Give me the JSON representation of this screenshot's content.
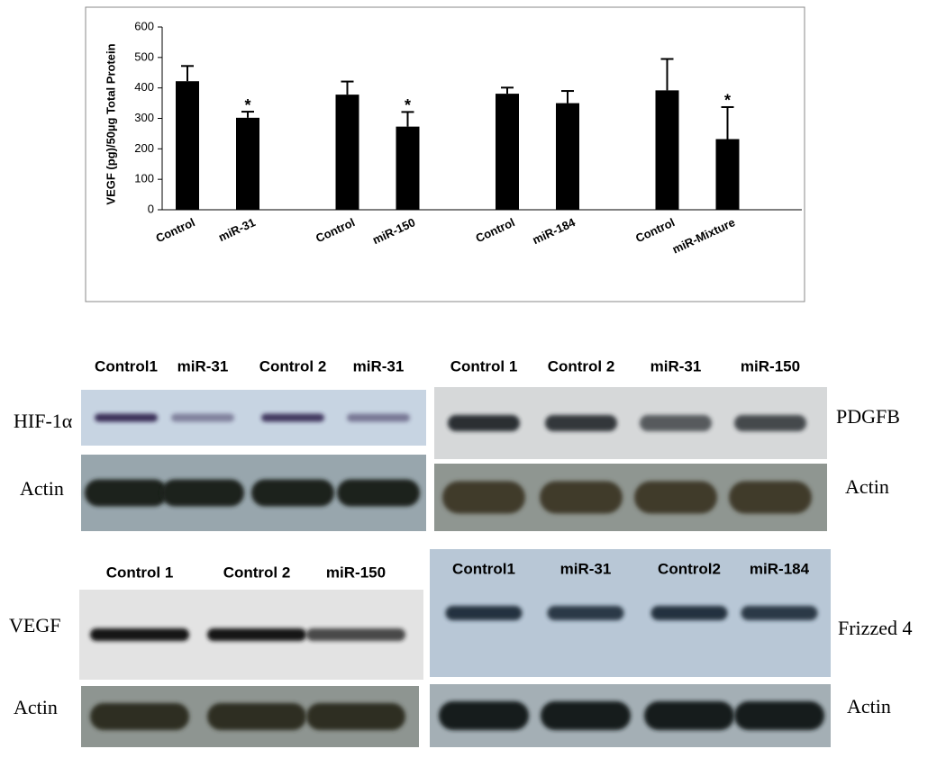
{
  "chart_data": {
    "type": "bar",
    "y_label": "VEGF (pg)/50µg Total Protein",
    "categories": [
      "Control",
      "miR-31",
      "Control",
      "miR-150",
      "Control",
      "miR-184",
      "Control",
      "miR-Mixture"
    ],
    "values": [
      422,
      302,
      378,
      273,
      381,
      350,
      392,
      232
    ],
    "errors": [
      50,
      20,
      43,
      48,
      20,
      40,
      103,
      105
    ],
    "significance": [
      null,
      "*",
      null,
      "*",
      null,
      null,
      null,
      "*"
    ],
    "color": "#000000",
    "ylim": [
      0,
      600
    ],
    "yticks": [
      0,
      100,
      200,
      300,
      400,
      500,
      600
    ]
  },
  "blots": [
    {
      "lanes": [
        "Control1",
        "miR-31",
        "Control 2",
        "miR-31"
      ],
      "rows": [
        "HIF-1α",
        "Actin"
      ]
    },
    {
      "lanes": [
        "Control 1",
        "Control 2",
        "miR-31",
        "miR-150"
      ],
      "rows": [
        "PDGFB",
        "Actin"
      ]
    },
    {
      "lanes": [
        "Control 1",
        "Control 2",
        "miR-150"
      ],
      "rows": [
        "VEGF",
        "Actin"
      ]
    },
    {
      "lanes": [
        "Control1",
        "miR-31",
        "Control2",
        "miR-184"
      ],
      "rows": [
        "Frizzed 4",
        "Actin"
      ]
    }
  ]
}
